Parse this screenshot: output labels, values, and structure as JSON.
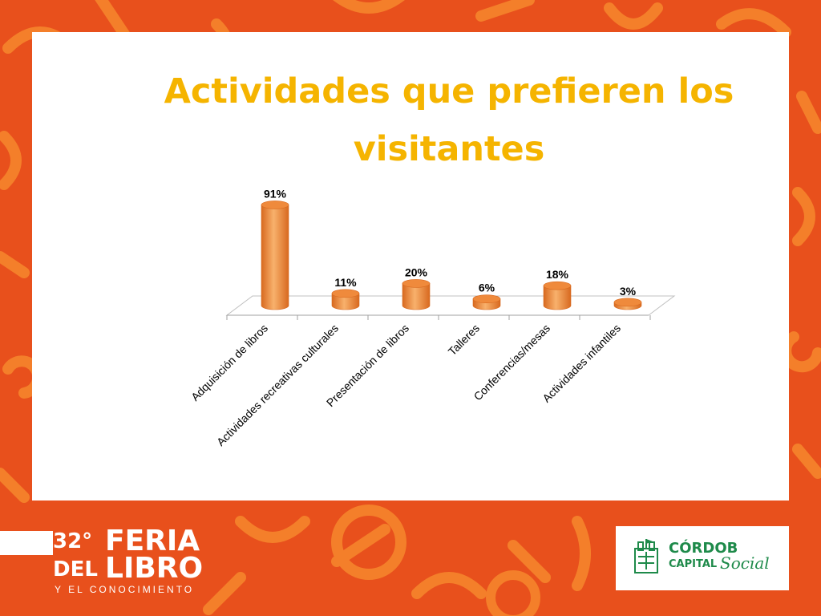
{
  "title": "Actividades que prefieren los visitantes",
  "colors": {
    "background": "#e8501c",
    "pattern": "#f47f2a",
    "title": "#f5b400",
    "bar": "#ef8a3c",
    "bar_dark": "#d8691f",
    "bar_light": "#f8b16c",
    "logo_green": "#1e8a4a"
  },
  "chart_data": {
    "type": "bar",
    "style": "3d-cylinder",
    "categories": [
      "Adquisición de libros",
      "Actividades recreativas culturales",
      "Presentación de libros",
      "Talleres",
      "Conferencias/mesas",
      "Actividades infantiles"
    ],
    "values": [
      91,
      11,
      20,
      6,
      18,
      3
    ],
    "value_labels": [
      "91%",
      "11%",
      "20%",
      "6%",
      "18%",
      "3%"
    ],
    "unit": "%",
    "grid": false,
    "legend": "none"
  },
  "footer": {
    "feria_logo": {
      "number": "32°",
      "line1": "FERIA",
      "line2_prefix": "DEL",
      "line2": "LIBRO",
      "subtitle": "Y EL CONOCIMIENTO"
    },
    "cordoba_logo": {
      "line1": "CÓRDOB",
      "line2": "CAPITAL",
      "line3": "Social"
    }
  }
}
